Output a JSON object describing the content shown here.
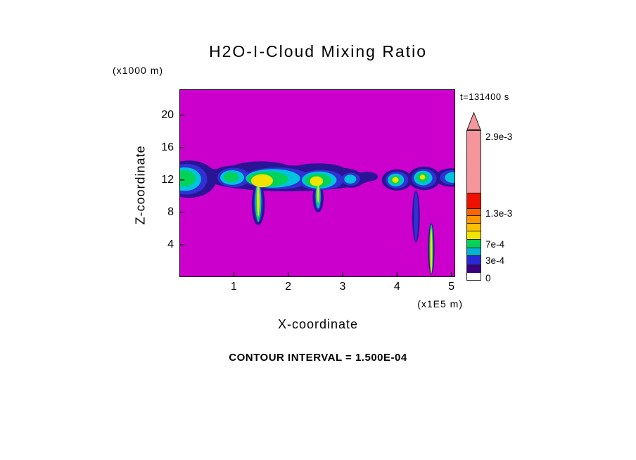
{
  "chart_data": {
    "type": "contour",
    "title": "H2O-I-Cloud Mixing Ratio",
    "time_annotation": "t=131400 s",
    "xlabel": "X-coordinate",
    "x_unit": "(x1E5 m)",
    "ylabel": "Z-coordinate",
    "y_unit": "(x1000 m)",
    "xlim": [
      0,
      5.07
    ],
    "ylim": [
      0,
      23.2
    ],
    "x_ticks": [
      1,
      2,
      3,
      4,
      5
    ],
    "y_ticks": [
      4,
      8,
      12,
      16,
      20
    ],
    "contour_interval_label": "CONTOUR INTERVAL = 1.500E-04",
    "contour_interval": 0.00015,
    "background_color": "#cc00cc",
    "cloud_palette": [
      "#2a1496",
      "#3030d4",
      "#00c4dc",
      "#00d25a",
      "#f0e400"
    ],
    "cloud_palette_levels": [
      0.00015,
      0.0003,
      0.00045,
      0.0006,
      0.00075
    ],
    "clouds": [
      [
        2.0,
        12.2,
        1.5,
        1.6,
        0
      ],
      [
        1.5,
        13.4,
        0.55,
        0.9,
        0
      ],
      [
        2.55,
        13.2,
        0.5,
        0.85,
        0
      ],
      [
        1.05,
        13.0,
        0.4,
        0.8,
        0
      ],
      [
        2.95,
        12.8,
        0.35,
        0.7,
        0
      ],
      [
        0.18,
        12.1,
        0.5,
        2.3,
        0
      ],
      [
        3.15,
        12.1,
        0.25,
        1.05,
        0
      ],
      [
        4.0,
        12.0,
        0.28,
        1.3,
        0
      ],
      [
        4.5,
        12.2,
        0.3,
        1.45,
        0
      ],
      [
        5.0,
        12.3,
        0.3,
        1.15,
        0
      ],
      [
        1.45,
        9.0,
        0.12,
        2.6,
        0
      ],
      [
        2.55,
        9.8,
        0.1,
        1.8,
        0
      ],
      [
        4.35,
        7.5,
        0.07,
        3.2,
        0
      ],
      [
        4.63,
        3.5,
        0.06,
        3.2,
        0
      ],
      [
        0.55,
        12.6,
        0.3,
        0.8,
        0
      ],
      [
        3.45,
        12.4,
        0.2,
        0.6,
        0
      ],
      [
        0.13,
        12.1,
        0.38,
        1.9,
        1
      ],
      [
        1.0,
        12.3,
        0.3,
        1.2,
        1
      ],
      [
        1.8,
        12.2,
        0.62,
        1.35,
        1
      ],
      [
        2.6,
        12.0,
        0.42,
        1.25,
        1
      ],
      [
        3.15,
        12.1,
        0.17,
        0.8,
        1
      ],
      [
        4.0,
        12.0,
        0.21,
        1.05,
        1
      ],
      [
        4.5,
        12.2,
        0.23,
        1.15,
        1
      ],
      [
        5.0,
        12.3,
        0.21,
        0.9,
        1
      ],
      [
        1.45,
        9.2,
        0.08,
        2.4,
        1
      ],
      [
        2.55,
        9.9,
        0.06,
        1.6,
        1
      ],
      [
        4.35,
        7.5,
        0.04,
        3.0,
        1
      ],
      [
        0.1,
        12.1,
        0.3,
        1.45,
        2
      ],
      [
        0.97,
        12.3,
        0.22,
        0.9,
        2
      ],
      [
        1.72,
        12.2,
        0.5,
        1.15,
        2
      ],
      [
        2.57,
        12.0,
        0.32,
        1.05,
        2
      ],
      [
        3.14,
        12.1,
        0.11,
        0.55,
        2
      ],
      [
        3.98,
        12.0,
        0.15,
        0.8,
        2
      ],
      [
        4.48,
        12.25,
        0.17,
        0.9,
        2
      ],
      [
        5.02,
        12.3,
        0.14,
        0.65,
        2
      ],
      [
        1.45,
        9.3,
        0.055,
        2.3,
        2
      ],
      [
        2.55,
        10.0,
        0.045,
        1.5,
        2
      ],
      [
        0.08,
        12.2,
        0.22,
        1.0,
        3
      ],
      [
        0.95,
        12.35,
        0.14,
        0.6,
        3
      ],
      [
        1.62,
        12.1,
        0.38,
        0.95,
        3
      ],
      [
        2.55,
        11.95,
        0.24,
        0.85,
        3
      ],
      [
        3.97,
        12.0,
        0.1,
        0.55,
        3
      ],
      [
        4.47,
        12.3,
        0.11,
        0.6,
        3
      ],
      [
        1.45,
        9.0,
        0.04,
        2.2,
        3
      ],
      [
        2.55,
        10.1,
        0.03,
        1.3,
        3
      ],
      [
        4.63,
        3.5,
        0.035,
        3.0,
        3
      ],
      [
        1.52,
        11.9,
        0.2,
        0.8,
        4
      ],
      [
        1.45,
        9.5,
        0.025,
        2.0,
        4
      ],
      [
        2.52,
        11.85,
        0.12,
        0.6,
        4
      ],
      [
        2.55,
        10.3,
        0.018,
        1.1,
        4
      ],
      [
        3.97,
        12.0,
        0.06,
        0.35,
        4
      ],
      [
        4.47,
        12.35,
        0.05,
        0.3,
        4
      ],
      [
        4.63,
        3.2,
        0.018,
        2.8,
        4
      ]
    ],
    "colorbar": {
      "arrow_color": "#f4969b",
      "segments_bottom_to_top": [
        {
          "color": "#3a0080",
          "h": 12
        },
        {
          "color": "#2828d8",
          "h": 13
        },
        {
          "color": "#00b4d8",
          "h": 11
        },
        {
          "color": "#00d25a",
          "h": 12
        },
        {
          "color": "#f0e400",
          "h": 12
        },
        {
          "color": "#ffc000",
          "h": 11
        },
        {
          "color": "#ff9600",
          "h": 11
        },
        {
          "color": "#ff6400",
          "h": 10
        },
        {
          "color": "#ee1100",
          "h": 22
        },
        {
          "color": "#f4969b",
          "h": 88
        }
      ],
      "labels": [
        {
          "text": "2.9e-3",
          "offset": 201
        },
        {
          "text": "1.3e-3",
          "offset": 92
        },
        {
          "text": "7e-4",
          "offset": 48
        },
        {
          "text": "3e-4",
          "offset": 25
        },
        {
          "text": "0",
          "offset": 0
        }
      ]
    }
  }
}
